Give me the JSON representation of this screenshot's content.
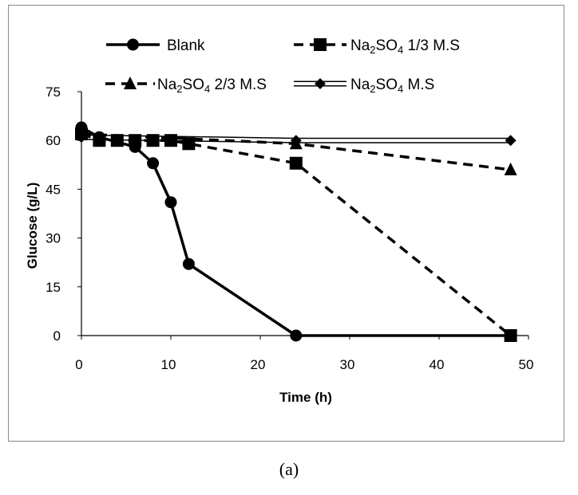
{
  "chart_data": {
    "type": "line",
    "title": "",
    "xlabel": "Time (h)",
    "ylabel": "Glucose (g/L)",
    "xlim": [
      0,
      50
    ],
    "ylim": [
      0,
      75
    ],
    "xticks": [
      0,
      10,
      20,
      30,
      40,
      50
    ],
    "yticks": [
      0,
      15,
      30,
      45,
      60,
      75
    ],
    "grid": false,
    "legend_position": "top",
    "series": [
      {
        "name": "Blank",
        "legend_parts": [
          {
            "text": "Blank",
            "sub": false
          }
        ],
        "marker": "circle",
        "line_style": "solid",
        "x": [
          0,
          2,
          6,
          8,
          10,
          12,
          24,
          48
        ],
        "y": [
          64,
          61,
          58,
          53,
          41,
          22,
          0,
          0
        ]
      },
      {
        "name": "Na2SO4 1/3 M.S",
        "legend_parts": [
          {
            "text": "Na",
            "sub": false
          },
          {
            "text": "2",
            "sub": true
          },
          {
            "text": "SO",
            "sub": false
          },
          {
            "text": "4",
            "sub": true
          },
          {
            "text": " 1/3 M.S",
            "sub": false
          }
        ],
        "marker": "square",
        "line_style": "dashed",
        "x": [
          0,
          2,
          4,
          6,
          8,
          10,
          12,
          24,
          48
        ],
        "y": [
          62,
          60,
          60,
          60,
          60,
          60,
          59,
          53,
          0
        ]
      },
      {
        "name": "Na2SO4 2/3 M.S",
        "legend_parts": [
          {
            "text": "Na",
            "sub": false
          },
          {
            "text": "2",
            "sub": true
          },
          {
            "text": "SO",
            "sub": false
          },
          {
            "text": "4",
            "sub": true
          },
          {
            "text": " 2/3 M.S",
            "sub": false
          }
        ],
        "marker": "triangle",
        "line_style": "dashed",
        "x": [
          0,
          24,
          48
        ],
        "y": [
          62,
          59,
          51
        ]
      },
      {
        "name": "Na2SO4 M.S",
        "legend_parts": [
          {
            "text": "Na",
            "sub": false
          },
          {
            "text": "2",
            "sub": true
          },
          {
            "text": "SO",
            "sub": false
          },
          {
            "text": "4",
            "sub": true
          },
          {
            "text": " M.S",
            "sub": false
          }
        ],
        "marker": "diamond",
        "line_style": "double",
        "x": [
          0,
          24,
          48
        ],
        "y": [
          61,
          60,
          60
        ]
      }
    ]
  },
  "caption": "(a)"
}
